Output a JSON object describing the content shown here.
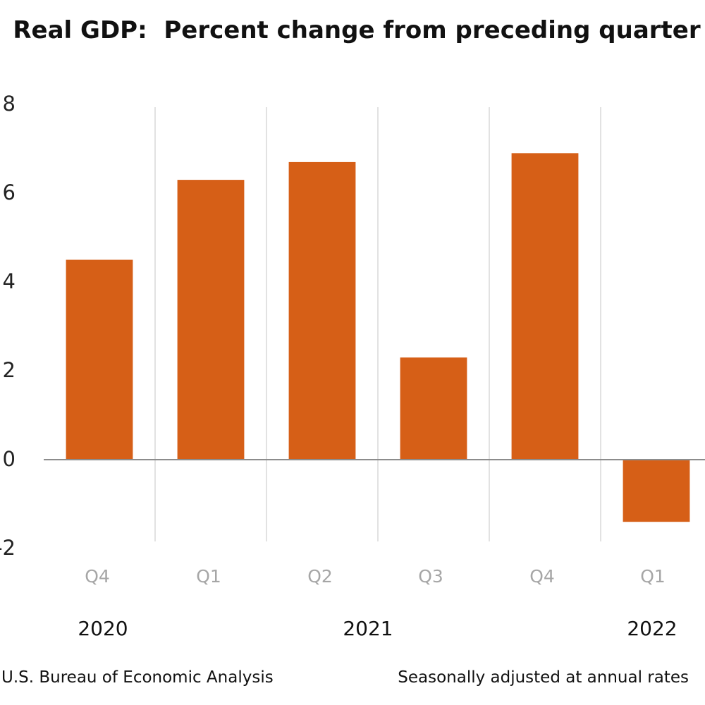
{
  "chart_data": {
    "type": "bar",
    "title": "Real GDP:  Percent change from preceding quarter",
    "categories": [
      "Q4",
      "Q1",
      "Q2",
      "Q3",
      "Q4",
      "Q1"
    ],
    "groups": [
      {
        "label": "2020"
      },
      {
        "label": "2021"
      },
      {
        "label": "2022"
      }
    ],
    "values": [
      4.5,
      6.3,
      6.7,
      2.3,
      6.9,
      -1.4
    ],
    "ylim": [
      -2,
      8
    ],
    "yticks": [
      "8",
      "6",
      "4",
      "2",
      "0",
      "-2"
    ],
    "bar_color": "#d65f17",
    "grid": "vertical separators between categories",
    "legend": "none"
  },
  "footer": {
    "source": "U.S. Bureau of Economic Analysis",
    "note": "Seasonally adjusted at annual rates"
  }
}
